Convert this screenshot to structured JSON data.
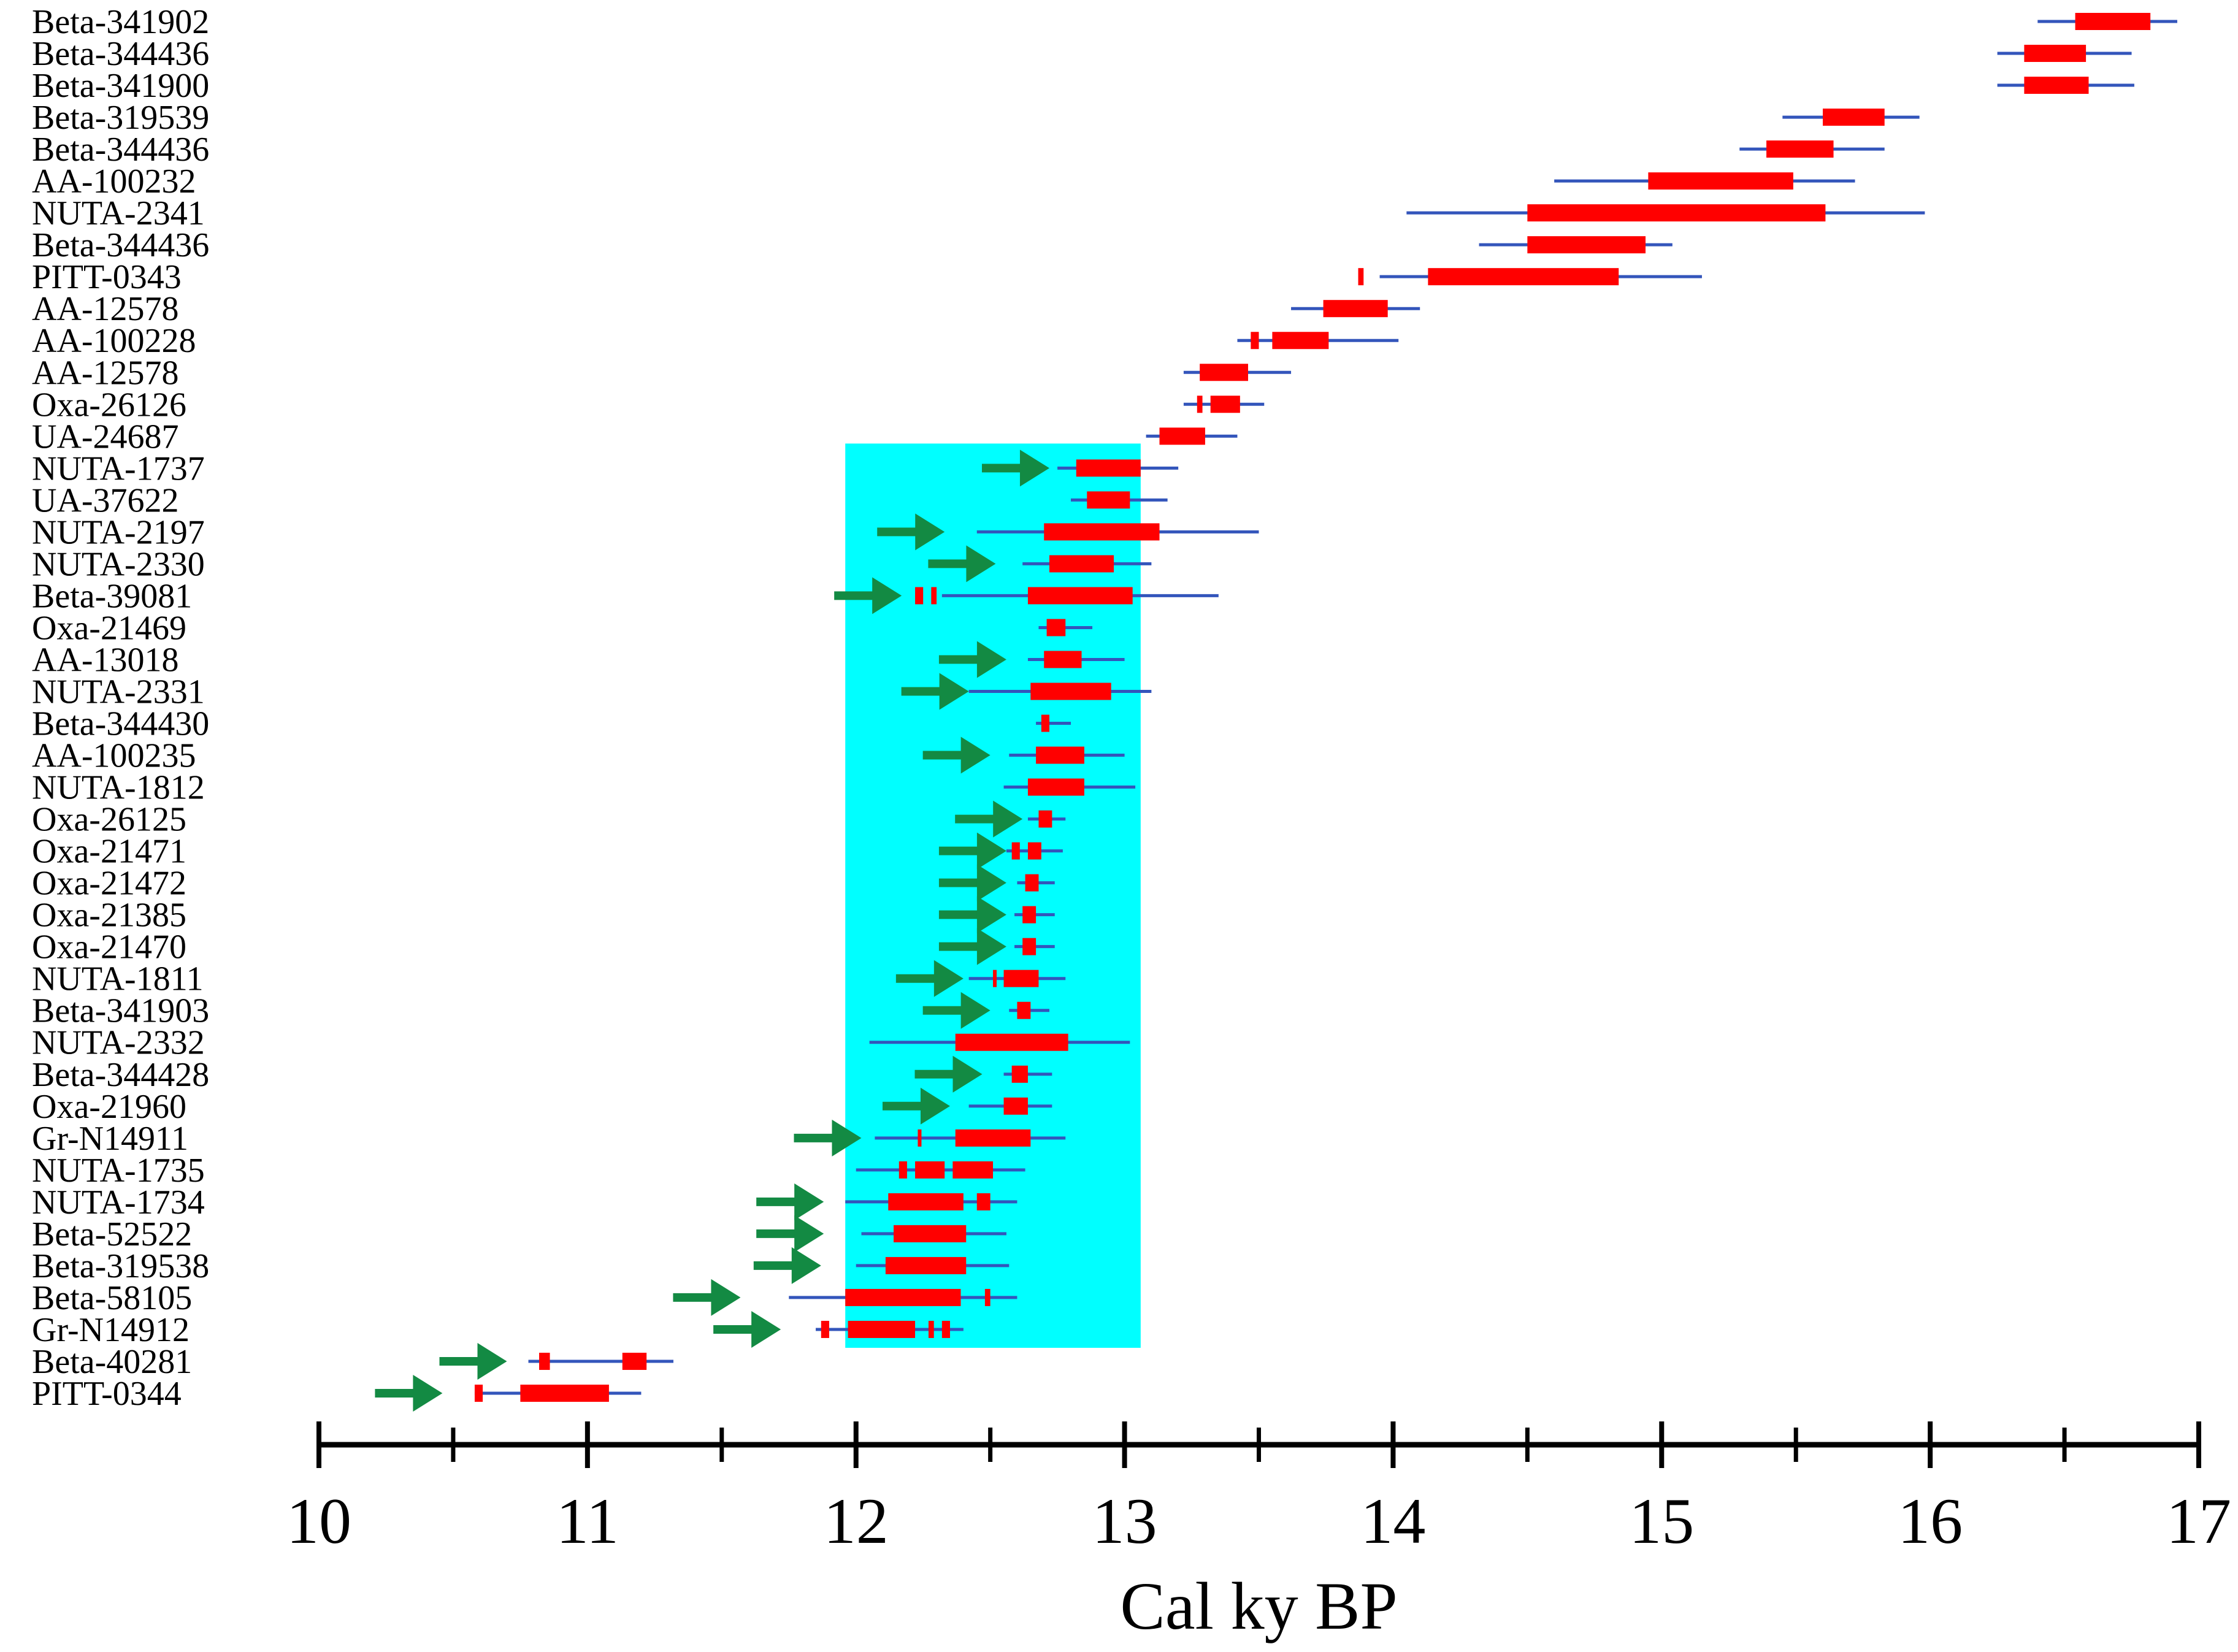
{
  "colors": {
    "range_2sigma": "#3355bb",
    "range_1sigma": "#ff0000",
    "highlight": "#00ffff",
    "arrow": "#138a43",
    "axis": "#000000"
  },
  "chart_data": {
    "type": "range",
    "xlabel": "Cal ky BP",
    "xlim": [
      10,
      17
    ],
    "major_ticks": [
      10,
      11,
      12,
      13,
      14,
      15,
      16,
      17
    ],
    "minor_ticks": [
      10.5,
      11.5,
      12.5,
      13.5,
      14.5,
      15.5,
      16.5
    ],
    "tick_labels": [
      "10",
      "11",
      "12",
      "13",
      "14",
      "15",
      "16",
      "17"
    ],
    "highlight_x": [
      11.96,
      13.06
    ],
    "samples": [
      {
        "id": "Beta-341902",
        "two_sigma": [
          16.4,
          16.92
        ],
        "one_sigma": [
          [
            16.54,
            16.82
          ]
        ],
        "arrow_x": null
      },
      {
        "id": "Beta-344436",
        "two_sigma": [
          16.25,
          16.75
        ],
        "one_sigma": [
          [
            16.35,
            16.58
          ]
        ],
        "arrow_x": null
      },
      {
        "id": "Beta-341900",
        "two_sigma": [
          16.25,
          16.76
        ],
        "one_sigma": [
          [
            16.35,
            16.59
          ]
        ],
        "arrow_x": null
      },
      {
        "id": "Beta-319539",
        "two_sigma": [
          15.45,
          15.96
        ],
        "one_sigma": [
          [
            15.6,
            15.83
          ]
        ],
        "arrow_x": null
      },
      {
        "id": "Beta-344436",
        "two_sigma": [
          15.29,
          15.83
        ],
        "one_sigma": [
          [
            15.39,
            15.64
          ]
        ],
        "arrow_x": null
      },
      {
        "id": "AA-100232",
        "two_sigma": [
          14.6,
          15.72
        ],
        "one_sigma": [
          [
            14.95,
            15.49
          ]
        ],
        "arrow_x": null
      },
      {
        "id": "NUTA-2341",
        "two_sigma": [
          14.05,
          15.98
        ],
        "one_sigma": [
          [
            14.5,
            15.61
          ]
        ],
        "arrow_x": null
      },
      {
        "id": "Beta-344436",
        "two_sigma": [
          14.32,
          15.04
        ],
        "one_sigma": [
          [
            14.5,
            14.94
          ]
        ],
        "arrow_x": null
      },
      {
        "id": "PITT-0343",
        "two_sigma": [
          13.95,
          15.15
        ],
        "one_sigma": [
          [
            13.87,
            13.89
          ],
          [
            14.13,
            14.84
          ]
        ],
        "arrow_x": null
      },
      {
        "id": "AA-12578",
        "two_sigma": [
          13.62,
          14.1
        ],
        "one_sigma": [
          [
            13.74,
            13.98
          ]
        ],
        "arrow_x": null
      },
      {
        "id": "AA-100228",
        "two_sigma": [
          13.42,
          14.02
        ],
        "one_sigma": [
          [
            13.47,
            13.5
          ],
          [
            13.55,
            13.76
          ]
        ],
        "arrow_x": null
      },
      {
        "id": "AA-12578",
        "two_sigma": [
          13.22,
          13.62
        ],
        "one_sigma": [
          [
            13.28,
            13.46
          ]
        ],
        "arrow_x": null
      },
      {
        "id": "Oxa-26126",
        "two_sigma": [
          13.22,
          13.52
        ],
        "one_sigma": [
          [
            13.27,
            13.29
          ],
          [
            13.32,
            13.43
          ]
        ],
        "arrow_x": null
      },
      {
        "id": "UA-24687",
        "two_sigma": [
          13.08,
          13.42
        ],
        "one_sigma": [
          [
            13.13,
            13.3
          ]
        ],
        "arrow_x": null
      },
      {
        "id": "NUTA-1737",
        "two_sigma": [
          12.75,
          13.2
        ],
        "one_sigma": [
          [
            12.82,
            13.06
          ]
        ],
        "arrow_x": 12.72
      },
      {
        "id": "UA-37622",
        "two_sigma": [
          12.8,
          13.16
        ],
        "one_sigma": [
          [
            12.86,
            13.02
          ]
        ],
        "arrow_x": null
      },
      {
        "id": "NUTA-2197",
        "two_sigma": [
          12.45,
          13.5
        ],
        "one_sigma": [
          [
            12.7,
            13.13
          ]
        ],
        "arrow_x": 12.33
      },
      {
        "id": "NUTA-2330",
        "two_sigma": [
          12.62,
          13.1
        ],
        "one_sigma": [
          [
            12.72,
            12.96
          ]
        ],
        "arrow_x": 12.52
      },
      {
        "id": "Beta-39081",
        "two_sigma": [
          12.32,
          13.35
        ],
        "one_sigma": [
          [
            12.22,
            12.25
          ],
          [
            12.28,
            12.3
          ],
          [
            12.64,
            13.03
          ]
        ],
        "arrow_x": 12.17
      },
      {
        "id": "Oxa-21469",
        "two_sigma": [
          12.68,
          12.88
        ],
        "one_sigma": [
          [
            12.71,
            12.78
          ]
        ],
        "arrow_x": null
      },
      {
        "id": "AA-13018",
        "two_sigma": [
          12.64,
          13.0
        ],
        "one_sigma": [
          [
            12.7,
            12.84
          ]
        ],
        "arrow_x": 12.56
      },
      {
        "id": "NUTA-2331",
        "two_sigma": [
          12.42,
          13.1
        ],
        "one_sigma": [
          [
            12.65,
            12.95
          ]
        ],
        "arrow_x": 12.42
      },
      {
        "id": "Beta-344430",
        "two_sigma": [
          12.67,
          12.8
        ],
        "one_sigma": [
          [
            12.69,
            12.72
          ]
        ],
        "arrow_x": null
      },
      {
        "id": "AA-100235",
        "two_sigma": [
          12.57,
          13.0
        ],
        "one_sigma": [
          [
            12.67,
            12.85
          ]
        ],
        "arrow_x": 12.5
      },
      {
        "id": "NUTA-1812",
        "two_sigma": [
          12.55,
          13.04
        ],
        "one_sigma": [
          [
            12.64,
            12.85
          ]
        ],
        "arrow_x": null
      },
      {
        "id": "Oxa-26125",
        "two_sigma": [
          12.64,
          12.78
        ],
        "one_sigma": [
          [
            12.68,
            12.73
          ]
        ],
        "arrow_x": 12.62
      },
      {
        "id": "Oxa-21471",
        "two_sigma": [
          12.56,
          12.77
        ],
        "one_sigma": [
          [
            12.58,
            12.61
          ],
          [
            12.64,
            12.69
          ]
        ],
        "arrow_x": 12.56
      },
      {
        "id": "Oxa-21472",
        "two_sigma": [
          12.6,
          12.74
        ],
        "one_sigma": [
          [
            12.63,
            12.68
          ]
        ],
        "arrow_x": 12.56
      },
      {
        "id": "Oxa-21385",
        "two_sigma": [
          12.59,
          12.74
        ],
        "one_sigma": [
          [
            12.62,
            12.67
          ]
        ],
        "arrow_x": 12.56
      },
      {
        "id": "Oxa-21470",
        "two_sigma": [
          12.59,
          12.74
        ],
        "one_sigma": [
          [
            12.62,
            12.67
          ]
        ],
        "arrow_x": 12.56
      },
      {
        "id": "NUTA-1811",
        "two_sigma": [
          12.42,
          12.78
        ],
        "one_sigma": [
          [
            12.51,
            12.52
          ],
          [
            12.55,
            12.68
          ]
        ],
        "arrow_x": 12.4
      },
      {
        "id": "Beta-341903",
        "two_sigma": [
          12.57,
          12.72
        ],
        "one_sigma": [
          [
            12.6,
            12.65
          ]
        ],
        "arrow_x": 12.5
      },
      {
        "id": "NUTA-2332",
        "two_sigma": [
          12.05,
          13.02
        ],
        "one_sigma": [
          [
            12.37,
            12.79
          ]
        ],
        "arrow_x": null
      },
      {
        "id": "Beta-344428",
        "two_sigma": [
          12.55,
          12.73
        ],
        "one_sigma": [
          [
            12.58,
            12.64
          ]
        ],
        "arrow_x": 12.47
      },
      {
        "id": "Oxa-21960",
        "two_sigma": [
          12.42,
          12.73
        ],
        "one_sigma": [
          [
            12.55,
            12.64
          ]
        ],
        "arrow_x": 12.35
      },
      {
        "id": "Gr-N14911",
        "two_sigma": [
          12.07,
          12.78
        ],
        "one_sigma": [
          [
            12.23,
            12.24
          ],
          [
            12.37,
            12.65
          ]
        ],
        "arrow_x": 12.02
      },
      {
        "id": "NUTA-1735",
        "two_sigma": [
          12.0,
          12.63
        ],
        "one_sigma": [
          [
            12.16,
            12.19
          ],
          [
            12.22,
            12.33
          ],
          [
            12.36,
            12.51
          ]
        ],
        "arrow_x": null
      },
      {
        "id": "NUTA-1734",
        "two_sigma": [
          11.96,
          12.6
        ],
        "one_sigma": [
          [
            12.12,
            12.4
          ],
          [
            12.45,
            12.5
          ]
        ],
        "arrow_x": 11.88
      },
      {
        "id": "Beta-52522",
        "two_sigma": [
          12.02,
          12.56
        ],
        "one_sigma": [
          [
            12.14,
            12.41
          ]
        ],
        "arrow_x": 11.88
      },
      {
        "id": "Beta-319538",
        "two_sigma": [
          12.0,
          12.57
        ],
        "one_sigma": [
          [
            12.11,
            12.41
          ]
        ],
        "arrow_x": 11.87
      },
      {
        "id": "Beta-58105",
        "two_sigma": [
          11.75,
          12.6
        ],
        "one_sigma": [
          [
            11.96,
            12.39
          ],
          [
            12.48,
            12.5
          ]
        ],
        "arrow_x": 11.57
      },
      {
        "id": "Gr-N14912",
        "two_sigma": [
          11.85,
          12.4
        ],
        "one_sigma": [
          [
            11.87,
            11.9
          ],
          [
            11.97,
            12.22
          ],
          [
            12.27,
            12.29
          ],
          [
            12.32,
            12.35
          ]
        ],
        "arrow_x": 11.72
      },
      {
        "id": "Beta-40281",
        "two_sigma": [
          10.78,
          11.32
        ],
        "one_sigma": [
          [
            10.82,
            10.86
          ],
          [
            11.13,
            11.22
          ]
        ],
        "arrow_x": 10.7
      },
      {
        "id": "PITT-0344",
        "two_sigma": [
          10.58,
          11.2
        ],
        "one_sigma": [
          [
            10.58,
            10.61
          ],
          [
            10.75,
            11.08
          ]
        ],
        "arrow_x": 10.46
      }
    ]
  }
}
